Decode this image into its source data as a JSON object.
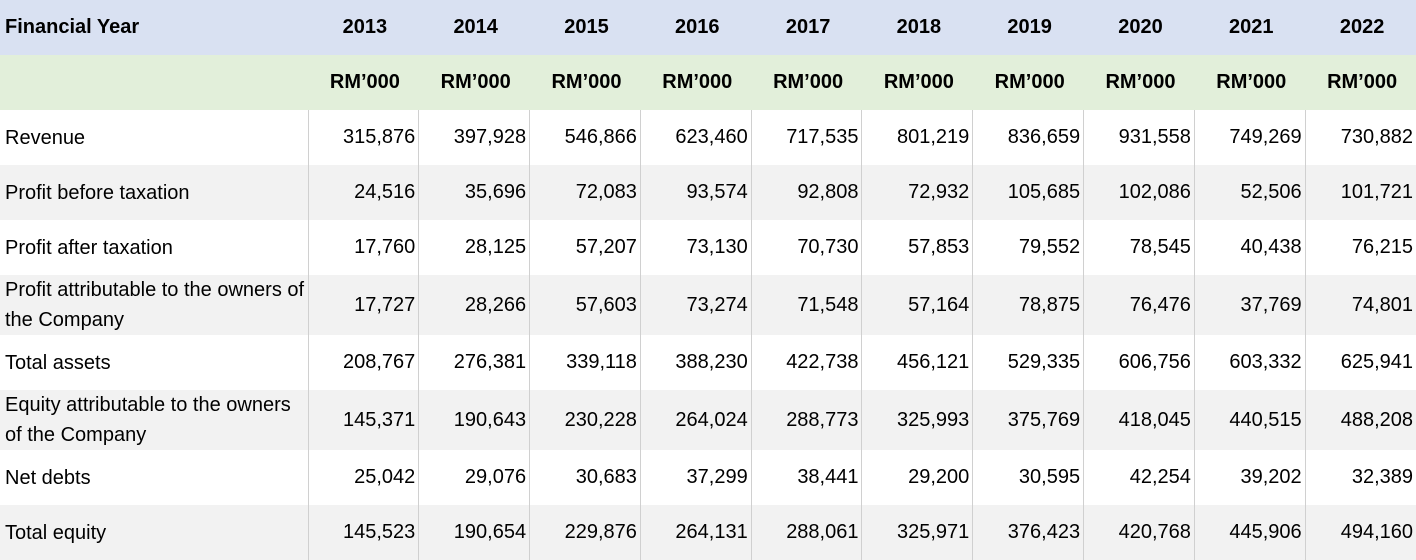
{
  "header": {
    "label": "Financial  Year",
    "years": [
      "2013",
      "2014",
      "2015",
      "2016",
      "2017",
      "2018",
      "2019",
      "2020",
      "2021",
      "2022"
    ]
  },
  "units": [
    "RM’000",
    "RM’000",
    "RM’000",
    "RM’000",
    "RM’000",
    "RM’000",
    "RM’000",
    "RM’000",
    "RM’000",
    "RM’000"
  ],
  "rows": [
    {
      "label": "Revenue",
      "values": [
        "315,876",
        "397,928",
        "546,866",
        "623,460",
        "717,535",
        "801,219",
        "836,659",
        "931,558",
        "749,269",
        "730,882"
      ]
    },
    {
      "label": "Profit  before  taxation",
      "values": [
        "24,516",
        "35,696",
        "72,083",
        "93,574",
        "92,808",
        "72,932",
        "105,685",
        "102,086",
        "52,506",
        "101,721"
      ]
    },
    {
      "label": "Profit  after  taxation",
      "values": [
        "17,760",
        "28,125",
        "57,207",
        "73,130",
        "70,730",
        "57,853",
        "79,552",
        "78,545",
        "40,438",
        "76,215"
      ]
    },
    {
      "label": "Profit attributable to the owners of the Company",
      "values": [
        "17,727",
        "28,266",
        "57,603",
        "73,274",
        "71,548",
        "57,164",
        "78,875",
        "76,476",
        "37,769",
        "74,801"
      ]
    },
    {
      "label": "Total assets",
      "values": [
        "208,767",
        "276,381",
        "339,118",
        "388,230",
        "422,738",
        "456,121",
        "529,335",
        "606,756",
        "603,332",
        "625,941"
      ]
    },
    {
      "label": "Equity attributable to the owners of the Company",
      "values": [
        "145,371",
        "190,643",
        "230,228",
        "264,024",
        "288,773",
        "325,993",
        "375,769",
        "418,045",
        "440,515",
        "488,208"
      ]
    },
    {
      "label": "Net debts",
      "values": [
        "25,042",
        "29,076",
        "30,683",
        "37,299",
        "38,441",
        "29,200",
        "30,595",
        "42,254",
        "39,202",
        "32,389"
      ]
    },
    {
      "label": "Total equity",
      "values": [
        "145,523",
        "190,654",
        "229,876",
        "264,131",
        "288,061",
        "325,971",
        "376,423",
        "420,768",
        "445,906",
        "494,160"
      ]
    }
  ]
}
